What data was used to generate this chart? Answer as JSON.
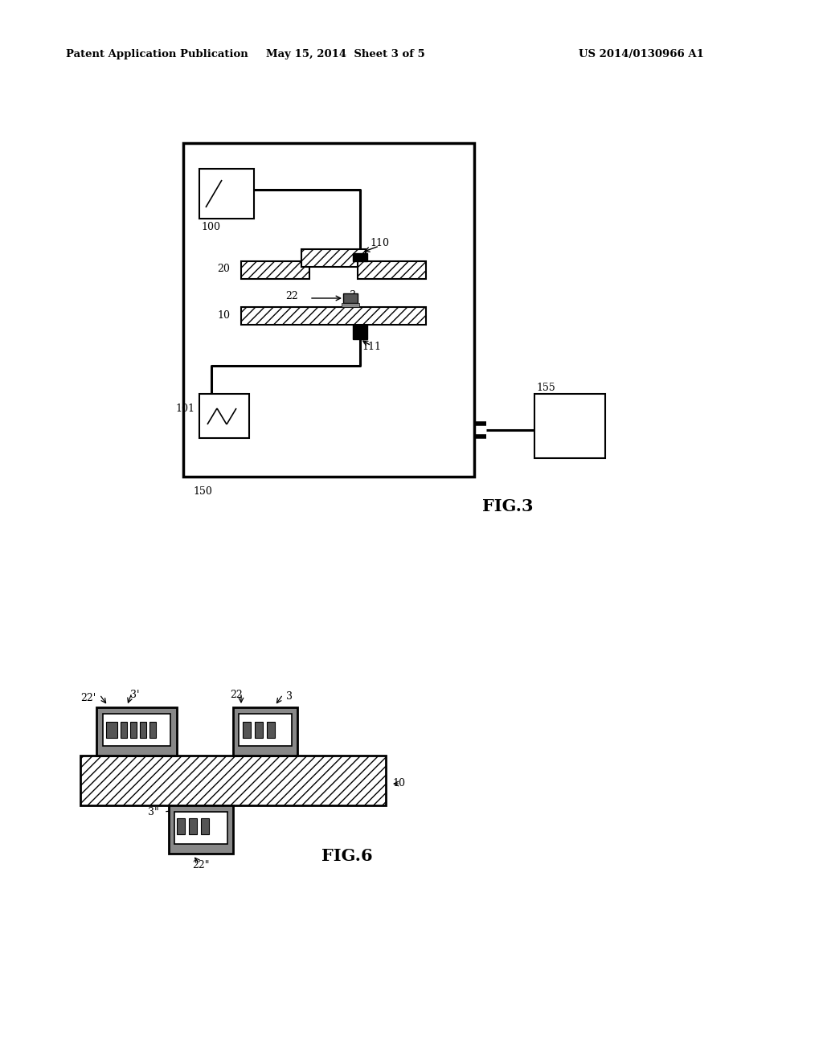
{
  "bg_color": "#ffffff",
  "header_left": "Patent Application Publication",
  "header_mid": "May 15, 2014  Sheet 3 of 5",
  "header_right": "US 2014/0130966 A1",
  "fig3_label": "FIG.3",
  "fig6_label": "FIG.6"
}
